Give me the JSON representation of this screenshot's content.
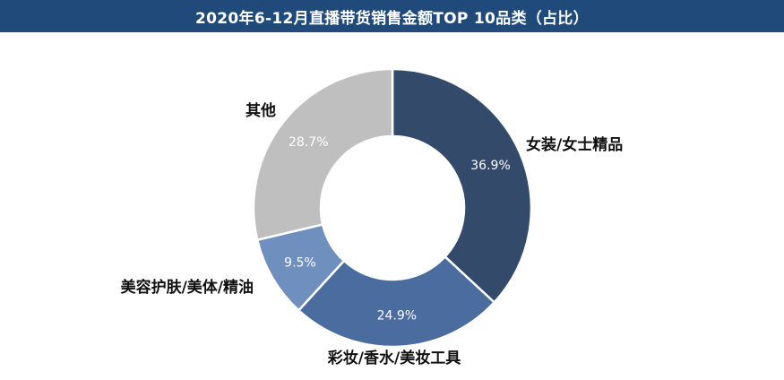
{
  "chart_data": {
    "type": "pie",
    "donut": true,
    "title": "2020年6-12月直播带货销售金额TOP 10品类（占比）",
    "slices": [
      {
        "label": "女装/女士精品",
        "value": 36.9,
        "value_label": "36.9%",
        "color": "#344a6b"
      },
      {
        "label": "彩妆/香水/美妆工具",
        "value": 24.9,
        "value_label": "24.9%",
        "color": "#4a6c9e"
      },
      {
        "label": "美容护肤/美体/精油",
        "value": 9.5,
        "value_label": "9.5%",
        "color": "#6f90bf"
      },
      {
        "label": "其他",
        "value": 28.7,
        "value_label": "28.7%",
        "color": "#bfbfbf"
      }
    ],
    "title_bar_color": "#1f4a7a"
  }
}
